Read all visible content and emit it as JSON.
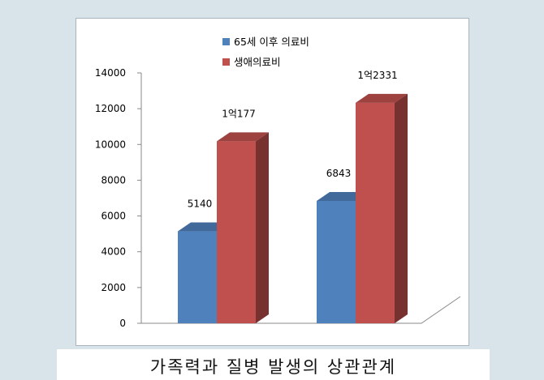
{
  "caption": "가족력과 질병 발생의 상관관계",
  "chart_data": {
    "type": "bar",
    "categories": [
      "",
      ""
    ],
    "series": [
      {
        "name": "65세 이후 의료비",
        "values": [
          5140,
          6843
        ],
        "labels": [
          "5140",
          "6843"
        ],
        "color": "#4f81bd"
      },
      {
        "name": "생애의료비",
        "values": [
          10177,
          12331
        ],
        "labels": [
          "1억177",
          "1억2331"
        ],
        "color": "#c0504d"
      }
    ],
    "ylim": [
      0,
      14000
    ],
    "yticks": [
      "0",
      "2000",
      "4000",
      "6000",
      "8000",
      "10000",
      "12000",
      "14000"
    ],
    "title": "",
    "xlabel": "",
    "ylabel": "",
    "grid": false,
    "legend": "top-center"
  }
}
